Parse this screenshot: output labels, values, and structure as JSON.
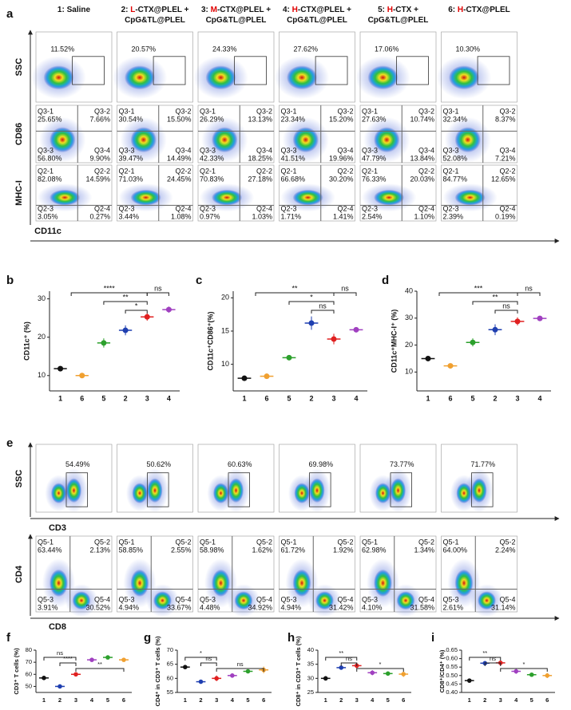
{
  "panel_labels": [
    "a",
    "b",
    "c",
    "d",
    "e",
    "f",
    "g",
    "h",
    "i"
  ],
  "flow_a": {
    "titles": [
      [
        [
          {
            "text": "1: Saline"
          }
        ]
      ],
      [
        [
          {
            "text": "2: "
          },
          {
            "text": "L",
            "color": "#e00000"
          },
          {
            "text": "-CTX@PLEL +"
          }
        ],
        [
          {
            "text": "CpG&TL@PLEL"
          }
        ]
      ],
      [
        [
          {
            "text": "3: "
          },
          {
            "text": "M",
            "color": "#e00000"
          },
          {
            "text": "-CTX@PLEL +"
          }
        ],
        [
          {
            "text": "CpG&TL@PLEL"
          }
        ]
      ],
      [
        [
          {
            "text": "4: "
          },
          {
            "text": "H",
            "color": "#e00000"
          },
          {
            "text": "-CTX@PLEL +"
          }
        ],
        [
          {
            "text": "CpG&TL@PLEL"
          }
        ]
      ],
      [
        [
          {
            "text": "5: "
          },
          {
            "text": "H",
            "color": "#e00000"
          },
          {
            "text": "-CTX +"
          }
        ],
        [
          {
            "text": "CpG&TL@PLEL"
          }
        ]
      ],
      [
        [
          {
            "text": "6: "
          },
          {
            "text": "H",
            "color": "#e00000"
          },
          {
            "text": "-CTX@PLEL"
          }
        ]
      ]
    ],
    "row_labels": [
      "SSC",
      "CD86",
      "MHC-I"
    ],
    "x_label": "CD11c",
    "gates": [
      "11.52%",
      "20.57%",
      "24.33%",
      "27.62%",
      "17.06%",
      "10.30%"
    ],
    "cd86_quadrants": [
      "Q3-1",
      "Q3-2",
      "Q3-3",
      "Q3-4"
    ],
    "cd86": [
      [
        "25.65%",
        "7.66%",
        "56.80%",
        "9.90%"
      ],
      [
        "30.54%",
        "15.50%",
        "39.47%",
        "14.49%"
      ],
      [
        "26.29%",
        "13.13%",
        "42.33%",
        "18.25%"
      ],
      [
        "23.34%",
        "15.20%",
        "41.51%",
        "19.96%"
      ],
      [
        "27.63%",
        "10.74%",
        "47.79%",
        "13.84%"
      ],
      [
        "32.34%",
        "8.37%",
        "52.08%",
        "7.21%"
      ]
    ],
    "mhc_quadrants": [
      "Q2-1",
      "Q2-2",
      "Q2-3",
      "Q2-4"
    ],
    "mhc": [
      [
        "82.08%",
        "14.59%",
        "3.05%",
        "0.27%"
      ],
      [
        "71.03%",
        "24.45%",
        "3.44%",
        "1.08%"
      ],
      [
        "70.83%",
        "27.18%",
        "0.97%",
        "1.03%"
      ],
      [
        "66.68%",
        "30.20%",
        "1.71%",
        "1.41%"
      ],
      [
        "76.33%",
        "20.03%",
        "2.54%",
        "1.10%"
      ],
      [
        "84.77%",
        "12.65%",
        "2.39%",
        "0.19%"
      ]
    ]
  },
  "flow_e": {
    "ssc_label": "SSC",
    "cd3_label": "CD3",
    "cd4_label": "CD4",
    "cd8_label": "CD8",
    "gates": [
      "54.49%",
      "50.62%",
      "60.63%",
      "69.98%",
      "73.77%",
      "71.77%"
    ],
    "quadrants": [
      "Q5-1",
      "Q5-2",
      "Q5-3",
      "Q5-4"
    ],
    "values": [
      [
        "63.44%",
        "2.13%",
        "3.91%",
        "30.52%"
      ],
      [
        "58.85%",
        "2.55%",
        "4.94%",
        "33.67%"
      ],
      [
        "58.98%",
        "1.62%",
        "4.48%",
        "34.92%"
      ],
      [
        "61.72%",
        "1.92%",
        "4.94%",
        "31.42%"
      ],
      [
        "62.98%",
        "1.34%",
        "4.10%",
        "31.58%"
      ],
      [
        "64.00%",
        "2.24%",
        "2.61%",
        "31.14%"
      ]
    ]
  },
  "chart_data": [
    {
      "type": "dot",
      "y_label": "CD11c⁺ (%)",
      "categories": [
        "1",
        "6",
        "5",
        "2",
        "3",
        "4"
      ],
      "values": [
        11.8,
        10.0,
        18.5,
        21.8,
        25.3,
        27.2
      ],
      "errors": [
        0.5,
        0.4,
        1.2,
        1.3,
        1.0,
        0.8
      ],
      "colors": [
        "#111111",
        "#f0a030",
        "#2ca02c",
        "#1f3fb0",
        "#e02020",
        "#a040c0"
      ],
      "ylim": [
        6,
        32
      ],
      "yticks": [
        10,
        20,
        30
      ],
      "annotations": [
        "****",
        "**",
        "*",
        "ns"
      ]
    },
    {
      "type": "dot",
      "y_label": "CD11c⁺CD86⁺(%)",
      "categories": [
        "1",
        "6",
        "5",
        "2",
        "3",
        "4"
      ],
      "values": [
        7.9,
        8.2,
        11.0,
        16.2,
        13.8,
        15.2
      ],
      "errors": [
        0.3,
        0.4,
        0.2,
        1.0,
        0.8,
        0.4
      ],
      "colors": [
        "#111111",
        "#f0a030",
        "#2ca02c",
        "#1f3fb0",
        "#e02020",
        "#a040c0"
      ],
      "ylim": [
        6,
        21
      ],
      "yticks": [
        10,
        15,
        20
      ],
      "annotations": [
        "**",
        "*",
        "ns",
        "ns"
      ]
    },
    {
      "type": "dot",
      "y_label": "CD11c⁺MHC-I⁺ (%)",
      "categories": [
        "1",
        "6",
        "5",
        "2",
        "3",
        "4"
      ],
      "values": [
        15.0,
        12.3,
        21.0,
        25.7,
        28.8,
        29.9
      ],
      "errors": [
        0.8,
        0.6,
        1.5,
        2.0,
        1.5,
        0.8
      ],
      "colors": [
        "#111111",
        "#f0a030",
        "#2ca02c",
        "#1f3fb0",
        "#e02020",
        "#a040c0"
      ],
      "ylim": [
        3,
        40
      ],
      "yticks": [
        10,
        20,
        30,
        40
      ],
      "annotations": [
        "***",
        "**",
        "ns",
        "ns"
      ]
    },
    {
      "type": "dot",
      "y_label": "CD3⁺ T cells (%)",
      "categories": [
        "1",
        "2",
        "3",
        "4",
        "5",
        "6"
      ],
      "values": [
        57,
        50,
        60,
        72,
        74,
        72
      ],
      "errors": [
        1.5,
        0.6,
        0.3,
        1.8,
        0.4,
        0.5
      ],
      "colors": [
        "#111111",
        "#1f3fb0",
        "#e02020",
        "#a040c0",
        "#2ca02c",
        "#f0a030"
      ],
      "ylim": [
        45,
        80
      ],
      "yticks": [
        50,
        60,
        70,
        80
      ],
      "annotations": [
        "ns",
        "****",
        "**"
      ]
    },
    {
      "type": "dot",
      "y_label": "CD4⁺ in CD3⁺ T cells (%)",
      "categories": [
        "1",
        "2",
        "3",
        "4",
        "5",
        "6"
      ],
      "values": [
        64,
        58.8,
        60,
        61,
        62.5,
        63
      ],
      "errors": [
        0.6,
        0.2,
        1.0,
        0.8,
        0.6,
        1.2
      ],
      "colors": [
        "#111111",
        "#1f3fb0",
        "#e02020",
        "#a040c0",
        "#2ca02c",
        "#f0a030"
      ],
      "ylim": [
        55,
        70
      ],
      "yticks": [
        55,
        60,
        65,
        70
      ],
      "annotations": [
        "*",
        "ns",
        "ns"
      ]
    },
    {
      "type": "dot",
      "y_label": "CD8⁺ in CD3⁺ T cells (%)",
      "categories": [
        "1",
        "2",
        "3",
        "4",
        "5",
        "6"
      ],
      "values": [
        30,
        33.8,
        34.5,
        32,
        31.7,
        31.5
      ],
      "errors": [
        0.8,
        0.3,
        1.0,
        0.9,
        0.5,
        1.0
      ],
      "colors": [
        "#111111",
        "#1f3fb0",
        "#e02020",
        "#a040c0",
        "#2ca02c",
        "#f0a030"
      ],
      "ylim": [
        25,
        40
      ],
      "yticks": [
        25,
        30,
        35,
        40
      ],
      "annotations": [
        "**",
        "ns",
        "*"
      ]
    },
    {
      "type": "dot",
      "y_label": "CD8⁺/CD4⁺ (%)",
      "categories": [
        "1",
        "2",
        "3",
        "4",
        "5",
        "6"
      ],
      "values": [
        0.47,
        0.573,
        0.575,
        0.525,
        0.505,
        0.5
      ],
      "errors": [
        0.01,
        0.005,
        0.015,
        0.015,
        0.01,
        0.015
      ],
      "colors": [
        "#111111",
        "#1f3fb0",
        "#e02020",
        "#a040c0",
        "#2ca02c",
        "#f0a030"
      ],
      "ylim": [
        0.4,
        0.65
      ],
      "yticks": [
        {
          "value": 0.4,
          "label": "0.40"
        },
        {
          "value": 0.45,
          "label": "0.45"
        },
        {
          "value": 0.5,
          "label": "0.50"
        },
        {
          "value": 0.55,
          "label": "0.55"
        },
        {
          "value": 0.6,
          "label": "0.60"
        },
        {
          "value": 0.65,
          "label": "0.65"
        }
      ],
      "annotations": [
        "**",
        "ns",
        "*"
      ]
    }
  ]
}
